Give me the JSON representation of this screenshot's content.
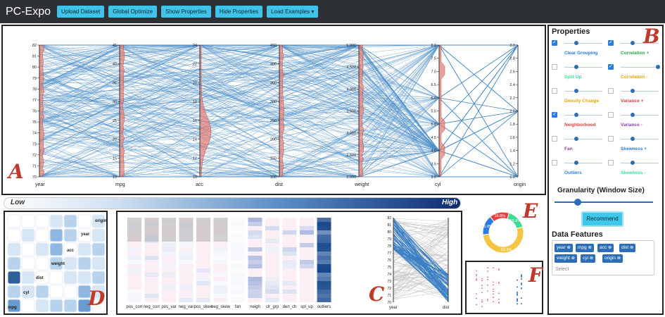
{
  "app": {
    "title": "PC-Expo"
  },
  "toolbar": {
    "upload": "Upload Dataset",
    "optimize": "Global Optimize",
    "show": "Show Properties",
    "hide": "Hide Properties",
    "examples": "Load Examples"
  },
  "view_labels": {
    "a": "A",
    "b": "B",
    "c": "C",
    "d": "D",
    "e": "E",
    "f": "F"
  },
  "pcp_axes": [
    {
      "name": "year",
      "ticks": [
        "82",
        "81",
        "80",
        "79",
        "78",
        "77",
        "76",
        "75",
        "74",
        "73",
        "72",
        "71",
        "70"
      ]
    },
    {
      "name": "mpg",
      "ticks": [
        "45",
        "40",
        "35",
        "30",
        "25",
        "20",
        "15",
        "10"
      ]
    },
    {
      "name": "acc",
      "ticks": [
        "24",
        "22",
        "20",
        "18",
        "16",
        "14",
        "12",
        "10"
      ]
    },
    {
      "name": "dist",
      "ticks": [
        "450",
        "400",
        "350",
        "300",
        "250",
        "200",
        "150",
        "100"
      ]
    },
    {
      "name": "weight",
      "ticks": [
        "5,000",
        "4,500",
        "4,000",
        "3,500",
        "3,000",
        "2,500",
        "2,000"
      ]
    },
    {
      "name": "cyl",
      "ticks": [
        "8.0",
        "7.5",
        "7.0",
        "6.5",
        "6.0",
        "5.5",
        "5.0",
        "4.5",
        "4.0",
        "3.5",
        "3.0"
      ]
    },
    {
      "name": "origin",
      "ticks": [
        "3.0",
        "2.8",
        "2.6",
        "2.4",
        "2.2",
        "2.0",
        "1.8",
        "1.6",
        "1.4",
        "1.2",
        "1.0"
      ]
    }
  ],
  "properties": {
    "title": "Properties",
    "items": [
      {
        "label": "Clear Grouping",
        "color": "#2c7be5",
        "checked": true
      },
      {
        "label": "Correlation +",
        "color": "#28a745",
        "checked": true
      },
      {
        "label": "Split Up",
        "color": "#3ddc97",
        "checked": false
      },
      {
        "label": "Correlation -",
        "color": "#f0a500",
        "checked": true
      },
      {
        "label": "Density Change",
        "color": "#f0a500",
        "checked": false
      },
      {
        "label": "Variance +",
        "color": "#e03e3e",
        "checked": false
      },
      {
        "label": "Neighborhood",
        "color": "#e03e3e",
        "checked": true
      },
      {
        "label": "Variance -",
        "color": "#8e44ad",
        "checked": false
      },
      {
        "label": "Fan",
        "color": "#8e44ad",
        "checked": false
      },
      {
        "label": "Skewness +",
        "color": "#2c7be5",
        "checked": false
      },
      {
        "label": "Outliers",
        "color": "#2c7be5",
        "checked": false
      },
      {
        "label": "Skewness -",
        "color": "#3ddc97",
        "checked": false
      }
    ]
  },
  "granularity": {
    "title": "Granularity (Window Size)",
    "value": 0.25
  },
  "recommend": {
    "label": "Recommend"
  },
  "data_features": {
    "title": "Data Features",
    "tags": [
      "year",
      "mpg",
      "acc",
      "dist",
      "weight",
      "cyl",
      "origin"
    ],
    "select_placeholder": "Select"
  },
  "legend": {
    "low": "Low",
    "high": "High"
  },
  "matrix": {
    "labels": [
      "origin",
      "year",
      "acc",
      "weight",
      "dist",
      "cyl",
      "mpg"
    ]
  },
  "heatmap": {
    "columns": [
      "pos_corr",
      "neg_corr",
      "pos_var",
      "neg_var",
      "pos_skew",
      "neg_skew",
      "fan",
      "neigh",
      "clr_grp",
      "den_ch",
      "spl_up",
      "outliers"
    ]
  },
  "mini_pcp": {
    "left_axis": "year",
    "right_axis": "dist",
    "ticks": [
      "82",
      "81",
      "80",
      "79",
      "78",
      "77",
      "76",
      "75",
      "74",
      "73",
      "72",
      "71",
      "70"
    ]
  },
  "donut": {
    "segments": [
      {
        "label": "15.8%",
        "value": 15.8,
        "color": "#e84040"
      },
      {
        "label": "15.8%",
        "value": 15.8,
        "color": "#3ddc97"
      },
      {
        "label": "52.6%",
        "value": 52.6,
        "color": "#f4c542"
      },
      {
        "label": "15.8%",
        "value": 15.8,
        "color": "#2c7be5"
      }
    ]
  }
}
